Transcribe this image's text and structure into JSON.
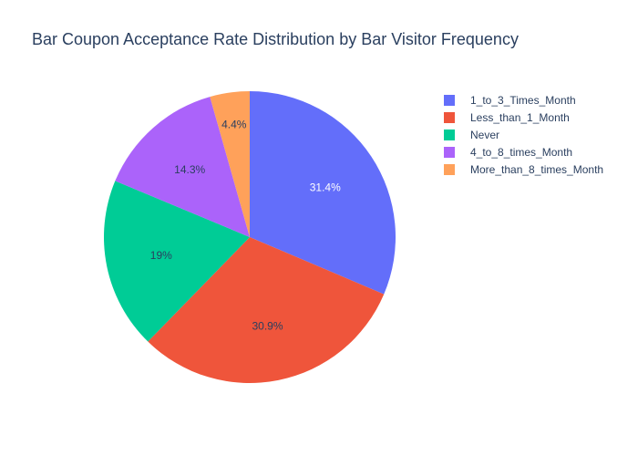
{
  "chart_data": {
    "type": "pie",
    "title": "Bar Coupon Acceptance Rate Distribution by Bar Visitor Frequency",
    "categories": [
      "1_to_3_Times_Month",
      "Less_than_1_Month",
      "Never",
      "4_to_8_times_Month",
      "More_than_8_times_Month"
    ],
    "values": [
      31.4,
      30.9,
      19.0,
      14.3,
      4.4
    ],
    "percent_labels": [
      "31.4%",
      "30.9%",
      "19%",
      "14.3%",
      "4.4%"
    ],
    "colors": [
      "#636efa",
      "#EF553B",
      "#00cc96",
      "#ab63fa",
      "#FFA15A"
    ],
    "label_colors": [
      "#ffffff",
      "#2a3f5f",
      "#2a3f5f",
      "#2a3f5f",
      "#2a3f5f"
    ],
    "direction": "clockwise",
    "start_angle": "12 o'clock",
    "legend_position": "top-right"
  }
}
